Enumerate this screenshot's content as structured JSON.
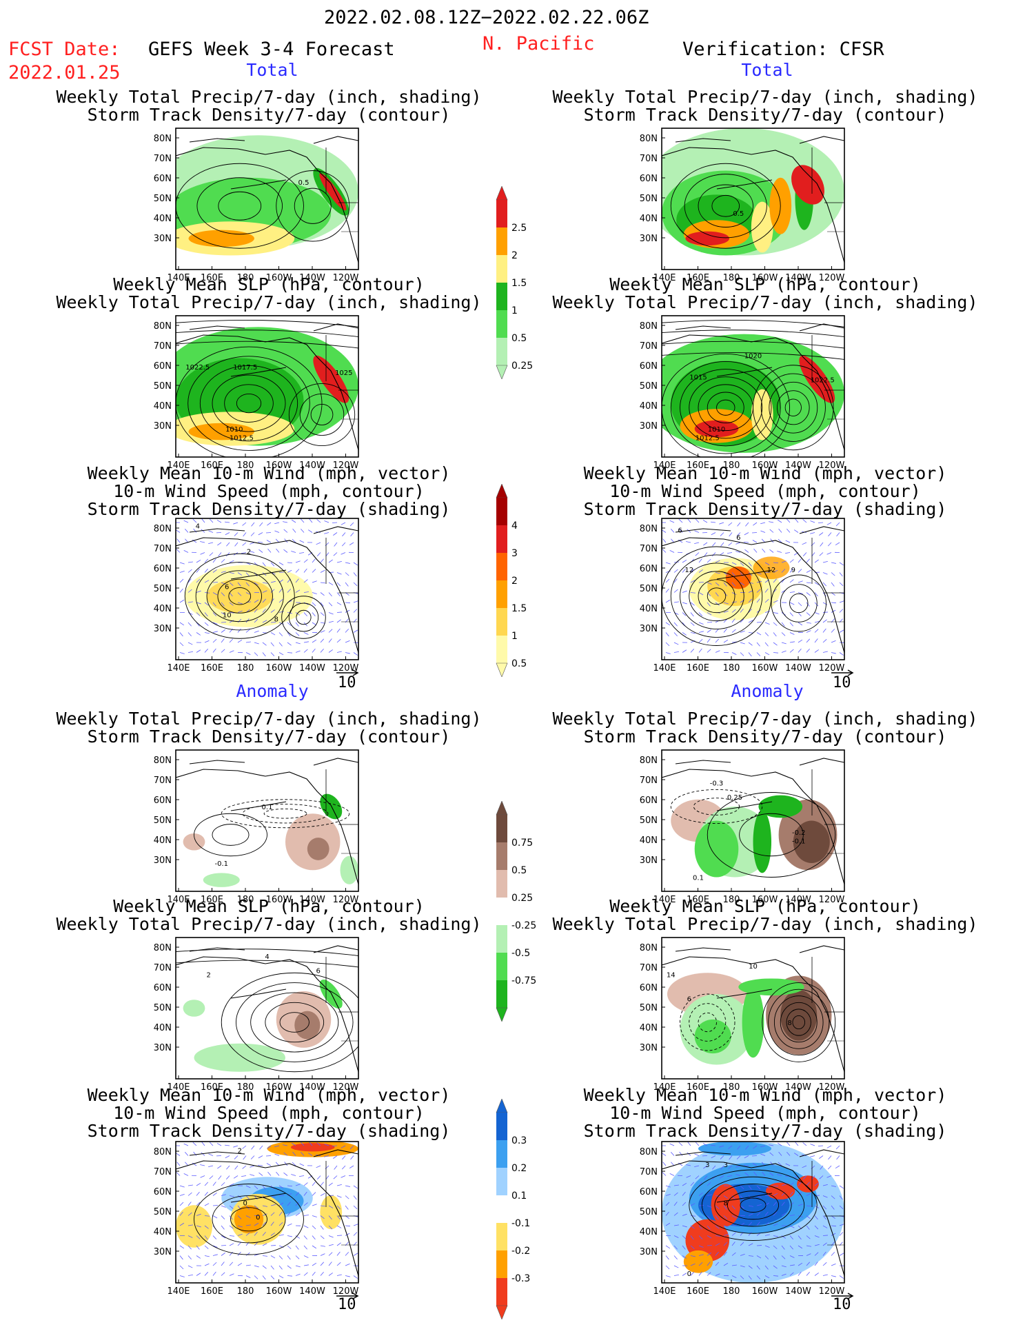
{
  "header": {
    "period": "2022.02.08.12Z−2022.02.22.06Z",
    "fcst_label": "FCST Date:",
    "fcst_date": "2022.01.25",
    "left_title": "GEFS Week 3-4 Forecast",
    "region": "N. Pacific",
    "right_title": "Verification: CFSR"
  },
  "sections": {
    "total": "Total",
    "anomaly": "Anomaly"
  },
  "axes": {
    "lat_ticks": [
      "80N",
      "70N",
      "60N",
      "50N",
      "40N",
      "30N"
    ],
    "lon_ticks": [
      "140E",
      "160E",
      "180",
      "160W",
      "140W",
      "120W"
    ],
    "vector_ref": "10"
  },
  "titles": {
    "precip_storm": [
      "Weekly Total Precip/7-day (inch, shading)",
      "Storm Track Density/7-day (contour)"
    ],
    "slp_precip": [
      "Weekly Mean SLP (hPa, contour)",
      "Weekly Total Precip/7-day (inch, shading)"
    ],
    "wind_storm": [
      "Weekly Mean 10-m Wind (mph, vector)",
      "10-m Wind Speed (mph, contour)",
      "Storm Track Density/7-day (shading)"
    ]
  },
  "contour_labels": {
    "p1L": [
      "0.5"
    ],
    "p1R": [
      "0.5"
    ],
    "p2L": [
      "1022.5",
      "1017.5",
      "1025",
      "1010",
      "1012.5"
    ],
    "p2R": [
      "1020",
      "1015",
      "1022.5",
      "1010",
      "1012.5"
    ],
    "p3L": [
      "4",
      "2",
      "6",
      "10",
      "8"
    ],
    "p3R": [
      "6",
      "6",
      "12",
      "12",
      "9"
    ],
    "p4L": [
      "0.1",
      "-0.1"
    ],
    "p4R": [
      "-0.3",
      "0.25",
      "-0.2",
      "-0.1",
      "0.1"
    ],
    "p5L": [
      "4",
      "2",
      "6"
    ],
    "p5R": [
      "14",
      "10",
      "6",
      "8"
    ],
    "p6L": [
      "2",
      "0",
      "0"
    ],
    "p6R": [
      "3",
      "3",
      "8",
      "0"
    ]
  },
  "colors": {
    "precip_total": [
      "#b4f0b4",
      "#50dc50",
      "#1eb41e",
      "#fff082",
      "#ffa000",
      "#e11e1e"
    ],
    "storm_total": [
      "#fffaaa",
      "#ffd750",
      "#ffa000",
      "#ff6400",
      "#e11e1e",
      "#a50000"
    ],
    "precip_anom": [
      "#1eb41e",
      "#50dc50",
      "#b4f0b4",
      "#ffffff",
      "#e1bcae",
      "#a67c6c",
      "#6e4a3c"
    ],
    "storm_anom": [
      "#1464d2",
      "#3ca0f0",
      "#a0d2ff",
      "#ffffff",
      "#ffe164",
      "#ffa000",
      "#f03c1e"
    ]
  },
  "chart_data": [
    {
      "type": "heatmap",
      "title": "Weekly Total Precip/7-day (inch, shading) – Storm Track Density/7-day (contour)",
      "panels": [
        "GEFS Week 3-4 Forecast Total",
        "Verification: CFSR Total"
      ],
      "x": [
        "140E",
        "160E",
        "180",
        "160W",
        "140W",
        "120W"
      ],
      "y": [
        "80N",
        "70N",
        "60N",
        "50N",
        "40N",
        "30N"
      ],
      "colorbar_levels": [
        0.25,
        0.5,
        1,
        1.5,
        2,
        2.5
      ]
    },
    {
      "type": "heatmap",
      "title": "Weekly Mean SLP (hPa, contour) – Weekly Total Precip/7-day (inch, shading)",
      "panels": [
        "GEFS Week 3-4 Forecast Total",
        "Verification: CFSR Total"
      ],
      "x": [
        "140E",
        "160E",
        "180",
        "160W",
        "140W",
        "120W"
      ],
      "y": [
        "80N",
        "70N",
        "60N",
        "50N",
        "40N",
        "30N"
      ],
      "colorbar_levels": [
        0.25,
        0.5,
        1,
        1.5,
        2,
        2.5
      ]
    },
    {
      "type": "heatmap",
      "title": "Weekly Mean 10-m Wind (mph, vector) – 10-m Wind Speed (mph, contour) – Storm Track Density/7-day (shading)",
      "panels": [
        "GEFS Week 3-4 Forecast Total",
        "Verification: CFSR Total"
      ],
      "x": [
        "140E",
        "160E",
        "180",
        "160W",
        "140W",
        "120W"
      ],
      "y": [
        "80N",
        "70N",
        "60N",
        "50N",
        "40N",
        "30N"
      ],
      "colorbar_levels": [
        0.5,
        1,
        1.5,
        2,
        3,
        4
      ]
    },
    {
      "type": "heatmap",
      "title": "Weekly Total Precip/7-day (inch, shading) – Storm Track Density/7-day (contour)",
      "panels": [
        "GEFS Week 3-4 Forecast Anomaly",
        "Verification: CFSR Anomaly"
      ],
      "x": [
        "140E",
        "160E",
        "180",
        "160W",
        "140W",
        "120W"
      ],
      "y": [
        "80N",
        "70N",
        "60N",
        "50N",
        "40N",
        "30N"
      ],
      "colorbar_levels": [
        0.75,
        0.5,
        0.25,
        -0.25,
        -0.5,
        -0.75
      ]
    },
    {
      "type": "heatmap",
      "title": "Weekly Mean SLP (hPa, contour) – Weekly Total Precip/7-day (inch, shading)",
      "panels": [
        "GEFS Week 3-4 Forecast Anomaly",
        "Verification: CFSR Anomaly"
      ],
      "x": [
        "140E",
        "160E",
        "180",
        "160W",
        "140W",
        "120W"
      ],
      "y": [
        "80N",
        "70N",
        "60N",
        "50N",
        "40N",
        "30N"
      ],
      "colorbar_levels": [
        0.75,
        0.5,
        0.25,
        -0.25,
        -0.5,
        -0.75
      ]
    },
    {
      "type": "heatmap",
      "title": "Weekly Mean 10-m Wind (mph, vector) – 10-m Wind Speed (mph, contour) – Storm Track Density/7-day (shading)",
      "panels": [
        "GEFS Week 3-4 Forecast Anomaly",
        "Verification: CFSR Anomaly"
      ],
      "x": [
        "140E",
        "160E",
        "180",
        "160W",
        "140W",
        "120W"
      ],
      "y": [
        "80N",
        "70N",
        "60N",
        "50N",
        "40N",
        "30N"
      ],
      "colorbar_levels": [
        0.3,
        0.2,
        0.1,
        -0.1,
        -0.2,
        -0.3
      ]
    }
  ]
}
